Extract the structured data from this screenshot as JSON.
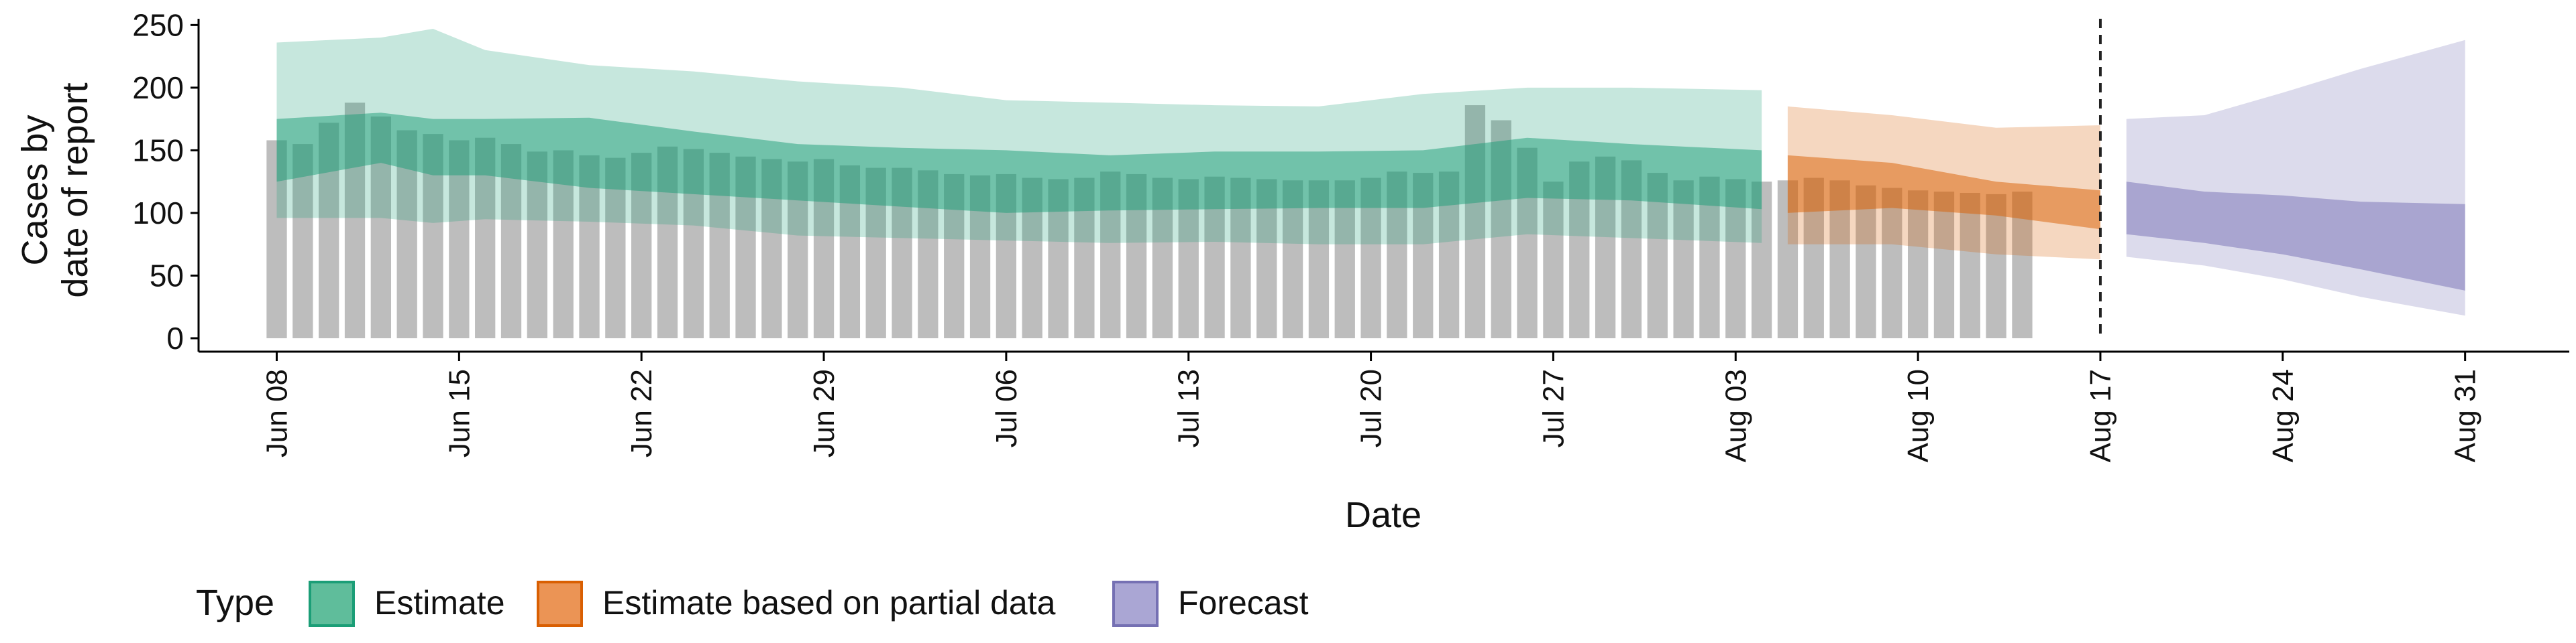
{
  "chart_data": {
    "type": "bar",
    "xlabel": "Date",
    "ylabel_lines": [
      "Cases by",
      "date of report"
    ],
    "ylim": [
      0,
      255
    ],
    "yticks": [
      0,
      50,
      100,
      150,
      200,
      250
    ],
    "xlim": [
      "2020-06-05",
      "2020-09-04"
    ],
    "xticks": [
      {
        "date": "2020-06-08",
        "label": "Jun 08"
      },
      {
        "date": "2020-06-15",
        "label": "Jun 15"
      },
      {
        "date": "2020-06-22",
        "label": "Jun 22"
      },
      {
        "date": "2020-06-29",
        "label": "Jun 29"
      },
      {
        "date": "2020-07-06",
        "label": "Jul 06"
      },
      {
        "date": "2020-07-13",
        "label": "Jul 13"
      },
      {
        "date": "2020-07-20",
        "label": "Jul 20"
      },
      {
        "date": "2020-07-27",
        "label": "Jul 27"
      },
      {
        "date": "2020-08-03",
        "label": "Aug 03"
      },
      {
        "date": "2020-08-10",
        "label": "Aug 10"
      },
      {
        "date": "2020-08-17",
        "label": "Aug 17"
      },
      {
        "date": "2020-08-24",
        "label": "Aug 24"
      },
      {
        "date": "2020-08-31",
        "label": "Aug 31"
      }
    ],
    "vline_date": "2020-08-17",
    "grid": false,
    "legend": {
      "title": "Type",
      "placement": "bottom-left",
      "entries": [
        {
          "label": "Estimate",
          "fill": "#5fbd9b",
          "stroke": "#1b9e77"
        },
        {
          "label": "Estimate based on partial data",
          "fill": "#eb9455",
          "stroke": "#d95f02"
        },
        {
          "label": "Forecast",
          "fill": "#aaa6d4",
          "stroke": "#7570b3"
        }
      ]
    },
    "colors": {
      "bars": "#bdbdbd",
      "estimate": "#1b9e77",
      "partial": "#d95f02",
      "forecast": "#7570b3"
    },
    "reported_cases": {
      "start": "2020-06-08",
      "values": [
        158,
        155,
        172,
        188,
        177,
        166,
        163,
        158,
        160,
        155,
        149,
        150,
        146,
        144,
        148,
        153,
        151,
        148,
        145,
        143,
        141,
        143,
        138,
        136,
        136,
        134,
        131,
        130,
        131,
        128,
        127,
        128,
        133,
        131,
        128,
        127,
        129,
        128,
        127,
        126,
        126,
        126,
        128,
        133,
        132,
        133,
        186,
        174,
        152,
        125,
        141,
        145,
        142,
        132,
        126,
        129,
        127,
        125,
        126,
        128,
        126,
        122,
        120,
        118,
        117,
        116,
        115,
        117
      ]
    },
    "estimate_band": {
      "dates": [
        "2020-06-08",
        "2020-06-12",
        "2020-06-14",
        "2020-06-16",
        "2020-06-20",
        "2020-06-24",
        "2020-06-28",
        "2020-07-02",
        "2020-07-06",
        "2020-07-10",
        "2020-07-14",
        "2020-07-18",
        "2020-07-22",
        "2020-07-26",
        "2020-07-30",
        "2020-08-04"
      ],
      "lower90": [
        96,
        96,
        92,
        95,
        93,
        90,
        82,
        80,
        78,
        76,
        77,
        75,
        75,
        83,
        80,
        76
      ],
      "lower50": [
        125,
        140,
        130,
        130,
        120,
        115,
        110,
        105,
        100,
        102,
        103,
        104,
        104,
        112,
        110,
        103
      ],
      "upper50": [
        175,
        180,
        175,
        175,
        176,
        165,
        155,
        152,
        150,
        146,
        149,
        149,
        150,
        160,
        155,
        150
      ],
      "upper90": [
        236,
        240,
        247,
        230,
        218,
        213,
        205,
        200,
        190,
        188,
        186,
        185,
        195,
        200,
        200,
        198
      ]
    },
    "partial_band": {
      "dates": [
        "2020-08-05",
        "2020-08-09",
        "2020-08-13",
        "2020-08-17"
      ],
      "lower90": [
        75,
        75,
        67,
        63
      ],
      "lower50": [
        100,
        104,
        98,
        87
      ],
      "upper50": [
        146,
        140,
        125,
        118
      ],
      "upper90": [
        185,
        178,
        168,
        170
      ]
    },
    "forecast_band": {
      "dates": [
        "2020-08-18",
        "2020-08-21",
        "2020-08-24",
        "2020-08-27",
        "2020-08-31"
      ],
      "lower90": [
        65,
        58,
        47,
        33,
        18
      ],
      "lower50": [
        83,
        76,
        67,
        55,
        38
      ],
      "upper50": [
        125,
        117,
        114,
        109,
        107
      ],
      "upper90": [
        175,
        178,
        196,
        215,
        238
      ]
    }
  }
}
